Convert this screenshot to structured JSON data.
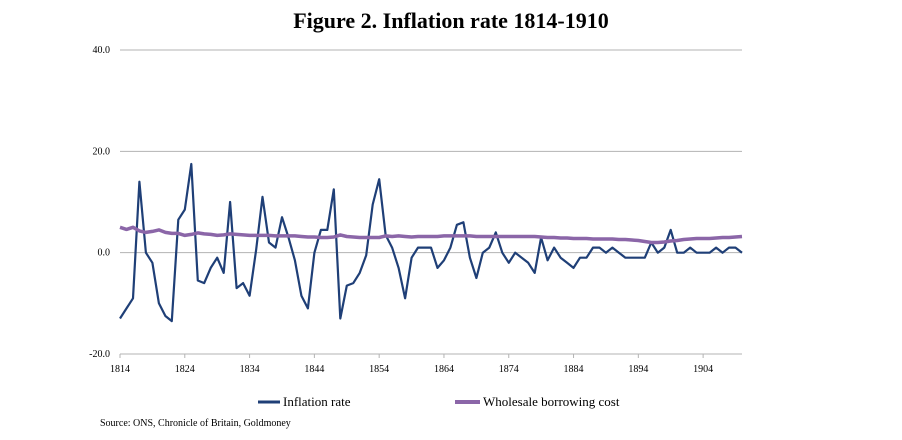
{
  "chart_data": {
    "type": "line",
    "title": "Figure 2. Inflation rate 1814-1910",
    "xlabel": "",
    "ylabel": "",
    "ylim": [
      -20,
      40
    ],
    "xlim": [
      1814,
      1910
    ],
    "y_ticks": [
      "40.0",
      "20.0",
      "0.0",
      "-20.0"
    ],
    "y_tick_values": [
      40,
      20,
      0,
      -20
    ],
    "x_ticks": [
      "1814",
      "1824",
      "1834",
      "1844",
      "1854",
      "1864",
      "1874",
      "1884",
      "1894",
      "1904"
    ],
    "x_tick_values": [
      1814,
      1824,
      1834,
      1844,
      1854,
      1864,
      1874,
      1884,
      1894,
      1904
    ],
    "grid": "horizontal",
    "legend_position": "bottom",
    "x": [
      1814,
      1815,
      1816,
      1817,
      1818,
      1819,
      1820,
      1821,
      1822,
      1823,
      1824,
      1825,
      1826,
      1827,
      1828,
      1829,
      1830,
      1831,
      1832,
      1833,
      1834,
      1835,
      1836,
      1837,
      1838,
      1839,
      1840,
      1841,
      1842,
      1843,
      1844,
      1845,
      1846,
      1847,
      1848,
      1849,
      1850,
      1851,
      1852,
      1853,
      1854,
      1855,
      1856,
      1857,
      1858,
      1859,
      1860,
      1861,
      1862,
      1863,
      1864,
      1865,
      1866,
      1867,
      1868,
      1869,
      1870,
      1871,
      1872,
      1873,
      1874,
      1875,
      1876,
      1877,
      1878,
      1879,
      1880,
      1881,
      1882,
      1883,
      1884,
      1885,
      1886,
      1887,
      1888,
      1889,
      1890,
      1891,
      1892,
      1893,
      1894,
      1895,
      1896,
      1897,
      1898,
      1899,
      1900,
      1901,
      1902,
      1903,
      1904,
      1905,
      1906,
      1907,
      1908,
      1909,
      1910
    ],
    "series": [
      {
        "name": "Inflation rate",
        "color": "#1f3f77",
        "values": [
          -13,
          -11,
          -9,
          14,
          0,
          -2,
          -10,
          -12.5,
          -13.5,
          6.5,
          8.5,
          17.5,
          -5.5,
          -6,
          -3,
          -1,
          -4,
          10,
          -7,
          -6,
          -8.5,
          0.5,
          11,
          2,
          1,
          7,
          3,
          -1.5,
          -8.5,
          -11,
          0,
          4.5,
          4.5,
          12.5,
          -13,
          -6.5,
          -6,
          -4,
          -0.5,
          9.5,
          14.5,
          3.5,
          1,
          -3,
          -9,
          -1,
          1,
          1,
          1,
          -3,
          -1.5,
          1,
          5.5,
          6,
          -1,
          -5,
          0,
          1,
          4,
          0,
          -2,
          0,
          -1,
          -2,
          -4,
          3,
          -1.5,
          1,
          -1,
          -2,
          -3,
          -1,
          -1,
          1,
          1,
          0,
          1,
          0,
          -1,
          -1,
          -1,
          -1,
          2,
          0,
          1,
          4.5,
          0,
          0,
          1,
          0,
          0,
          0,
          1,
          0,
          1,
          1,
          0
        ]
      },
      {
        "name": "Wholesale borrowing cost",
        "color": "#8b66a8",
        "values": [
          5,
          4.6,
          5,
          4.3,
          4,
          4.2,
          4.5,
          4,
          3.8,
          3.8,
          3.4,
          3.6,
          3.9,
          3.7,
          3.6,
          3.4,
          3.5,
          3.7,
          3.6,
          3.5,
          3.4,
          3.4,
          3.4,
          3.4,
          3.3,
          3.3,
          3.3,
          3.3,
          3.2,
          3.1,
          3.1,
          3,
          3,
          3.1,
          3.5,
          3.2,
          3.1,
          3,
          3,
          3,
          3,
          3.3,
          3.2,
          3.3,
          3.2,
          3.1,
          3.2,
          3.2,
          3.2,
          3.2,
          3.3,
          3.3,
          3.3,
          3.3,
          3.3,
          3.2,
          3.2,
          3.2,
          3.2,
          3.2,
          3.2,
          3.2,
          3.2,
          3.2,
          3.2,
          3.1,
          3,
          3,
          2.9,
          2.9,
          2.8,
          2.8,
          2.8,
          2.7,
          2.7,
          2.7,
          2.7,
          2.6,
          2.6,
          2.5,
          2.4,
          2.2,
          2,
          2,
          2.1,
          2.3,
          2.4,
          2.6,
          2.7,
          2.8,
          2.8,
          2.8,
          2.9,
          3,
          3,
          3.1,
          3.2
        ]
      }
    ]
  },
  "legend": {
    "inflation": "Inflation rate",
    "borrowing": "Wholesale borrowing cost"
  },
  "source": "Source: ONS, Chronicle of Britain, Goldmoney"
}
